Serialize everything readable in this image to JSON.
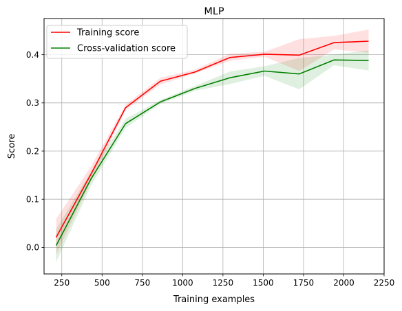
{
  "chart_data": {
    "type": "line",
    "title": "MLP",
    "xlabel": "Training examples",
    "ylabel": "Score",
    "xlim": [
      140,
      2250
    ],
    "ylim": [
      -0.055,
      0.475
    ],
    "xticks": [
      250,
      500,
      750,
      1000,
      1250,
      1500,
      1750,
      2000,
      2250
    ],
    "xtick_labels": [
      "250",
      "500",
      "750",
      "1000",
      "1250",
      "1500",
      "1750",
      "2000",
      "2250"
    ],
    "yticks": [
      0.0,
      0.1,
      0.2,
      0.3,
      0.4
    ],
    "ytick_labels": [
      "0.0",
      "0.1",
      "0.2",
      "0.3",
      "0.4"
    ],
    "grid": true,
    "legend_position": "top-left",
    "x": [
      215,
      431,
      646,
      862,
      1077,
      1292,
      1508,
      1723,
      1939,
      2154
    ],
    "series": [
      {
        "name": "Training score",
        "color": "#ff0000",
        "values": [
          0.021,
          0.152,
          0.29,
          0.345,
          0.364,
          0.394,
          0.401,
          0.399,
          0.425,
          0.428
        ],
        "band_lower": [
          -0.015,
          0.137,
          0.285,
          0.338,
          0.361,
          0.387,
          0.396,
          0.366,
          0.411,
          0.404
        ],
        "band_upper": [
          0.059,
          0.168,
          0.296,
          0.352,
          0.369,
          0.402,
          0.406,
          0.432,
          0.439,
          0.452
        ]
      },
      {
        "name": "Cross-validation score",
        "color": "#008000",
        "values": [
          0.004,
          0.142,
          0.257,
          0.302,
          0.33,
          0.352,
          0.366,
          0.36,
          0.389,
          0.388
        ],
        "band_lower": [
          -0.03,
          0.128,
          0.248,
          0.298,
          0.325,
          0.339,
          0.356,
          0.328,
          0.378,
          0.367
        ],
        "band_upper": [
          0.038,
          0.157,
          0.267,
          0.306,
          0.335,
          0.365,
          0.376,
          0.393,
          0.4,
          0.409
        ]
      }
    ]
  }
}
